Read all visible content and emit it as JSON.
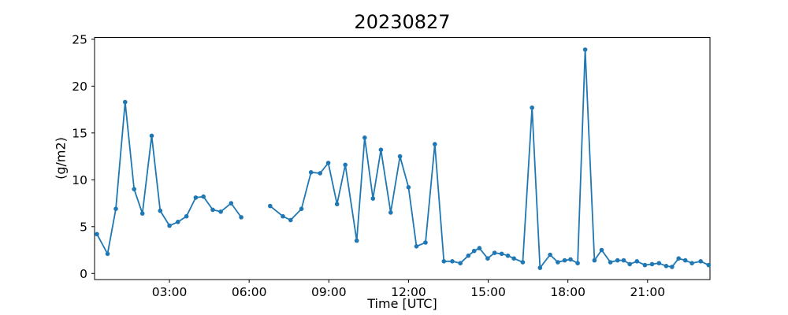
{
  "chart_data": {
    "type": "line",
    "title": "20230827",
    "xlabel": "Time [UTC]",
    "ylabel": "(g/m2)",
    "line_color": "#1f77b4",
    "marker": "circle",
    "grid": false,
    "legend": null,
    "xlim_hours": [
      0.18,
      23.35
    ],
    "ylim": [
      -0.65,
      25.2
    ],
    "x_ticks": [
      {
        "hour": 3,
        "label": "03:00"
      },
      {
        "hour": 6,
        "label": "06:00"
      },
      {
        "hour": 9,
        "label": "09:00"
      },
      {
        "hour": 12,
        "label": "12:00"
      },
      {
        "hour": 15,
        "label": "15:00"
      },
      {
        "hour": 18,
        "label": "18:00"
      },
      {
        "hour": 21,
        "label": "21:00"
      }
    ],
    "y_ticks": [
      0,
      5,
      10,
      15,
      20,
      25
    ],
    "points_note": "x = time in decimal hours UTC, y = g/m2; null entry = gap in data (no measurements ~05:45-06:45)",
    "points": [
      [
        0.27,
        4.2
      ],
      [
        0.67,
        2.1
      ],
      [
        0.98,
        6.9
      ],
      [
        1.33,
        18.3
      ],
      [
        1.67,
        9.0
      ],
      [
        1.98,
        6.4
      ],
      [
        2.33,
        14.7
      ],
      [
        2.65,
        6.7
      ],
      [
        3.0,
        5.1
      ],
      [
        3.32,
        5.5
      ],
      [
        3.64,
        6.1
      ],
      [
        3.99,
        8.1
      ],
      [
        4.28,
        8.2
      ],
      [
        4.63,
        6.8
      ],
      [
        4.93,
        6.6
      ],
      [
        5.32,
        7.5
      ],
      [
        5.7,
        6.0
      ],
      null,
      [
        6.79,
        7.2
      ],
      [
        7.27,
        6.1
      ],
      [
        7.56,
        5.7
      ],
      [
        7.97,
        6.9
      ],
      [
        8.33,
        10.8
      ],
      [
        8.67,
        10.7
      ],
      [
        8.98,
        11.8
      ],
      [
        9.31,
        7.4
      ],
      [
        9.62,
        11.6
      ],
      [
        10.05,
        3.5
      ],
      [
        10.35,
        14.5
      ],
      [
        10.66,
        8.0
      ],
      [
        10.96,
        13.2
      ],
      [
        11.33,
        6.5
      ],
      [
        11.68,
        12.5
      ],
      [
        12.0,
        9.2
      ],
      [
        12.3,
        2.9
      ],
      [
        12.64,
        3.3
      ],
      [
        12.99,
        13.8
      ],
      [
        13.33,
        1.3
      ],
      [
        13.65,
        1.3
      ],
      [
        13.95,
        1.1
      ],
      [
        14.25,
        1.9
      ],
      [
        14.47,
        2.4
      ],
      [
        14.67,
        2.7
      ],
      [
        14.98,
        1.6
      ],
      [
        15.24,
        2.2
      ],
      [
        15.51,
        2.1
      ],
      [
        15.74,
        1.9
      ],
      [
        15.97,
        1.6
      ],
      [
        16.3,
        1.2
      ],
      [
        16.65,
        17.7
      ],
      [
        16.95,
        0.6
      ],
      [
        17.33,
        2.0
      ],
      [
        17.62,
        1.2
      ],
      [
        17.88,
        1.4
      ],
      [
        18.1,
        1.5
      ],
      [
        18.37,
        1.1
      ],
      [
        18.65,
        23.9
      ],
      [
        19.0,
        1.4
      ],
      [
        19.27,
        2.5
      ],
      [
        19.6,
        1.2
      ],
      [
        19.87,
        1.4
      ],
      [
        20.1,
        1.4
      ],
      [
        20.33,
        1.0
      ],
      [
        20.6,
        1.3
      ],
      [
        20.9,
        0.9
      ],
      [
        21.17,
        1.0
      ],
      [
        21.43,
        1.1
      ],
      [
        21.7,
        0.8
      ],
      [
        21.92,
        0.7
      ],
      [
        22.17,
        1.6
      ],
      [
        22.42,
        1.4
      ],
      [
        22.67,
        1.1
      ],
      [
        23.0,
        1.3
      ],
      [
        23.3,
        0.9
      ]
    ]
  }
}
